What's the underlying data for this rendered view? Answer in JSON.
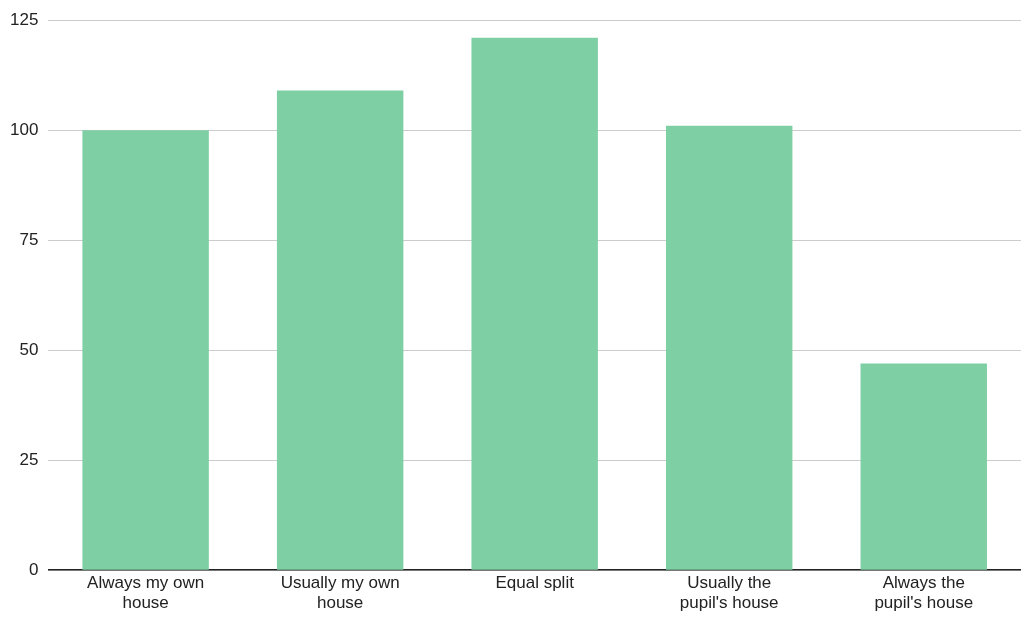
{
  "chart_data": {
    "type": "bar",
    "categories": [
      "Always my own house",
      "Usually my own house",
      "Equal split",
      "Usually the pupil's house",
      "Always the pupil's house"
    ],
    "values": [
      100,
      109,
      121,
      101,
      47
    ],
    "color": "#7fcfa5",
    "ylim": [
      0,
      125
    ],
    "yticks": [
      0,
      25,
      50,
      75,
      100,
      125
    ],
    "grid": "y"
  }
}
